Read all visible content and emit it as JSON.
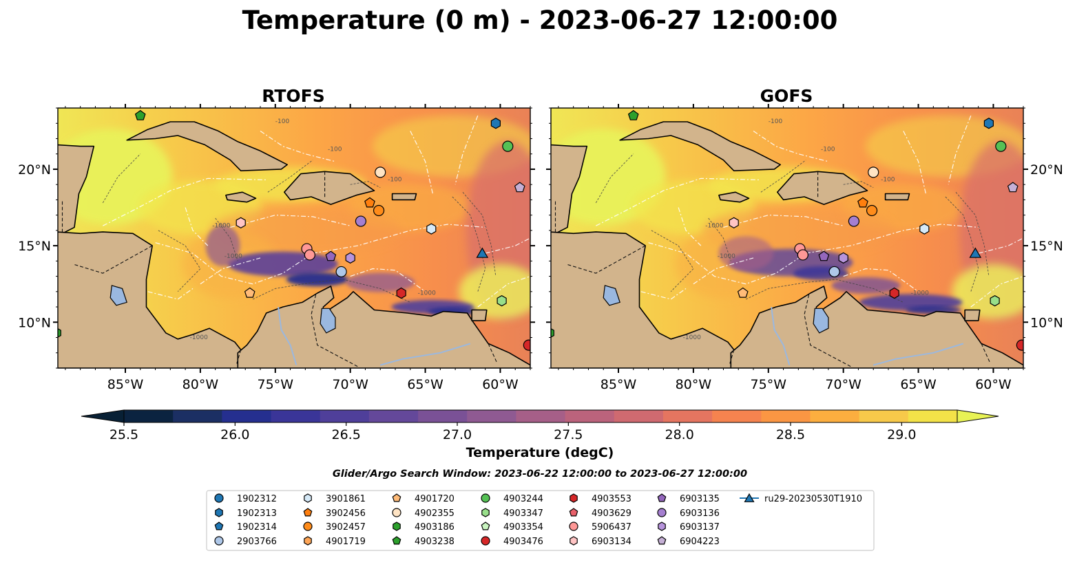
{
  "title": "Temperature (0 m) - 2023-06-27 12:00:00",
  "panels": [
    {
      "title": "RTOFS",
      "variant": 0
    },
    {
      "title": "GOFS",
      "variant": 1
    }
  ],
  "map": {
    "lon_range": [
      -89.5,
      -58.0
    ],
    "lat_range": [
      7.0,
      24.0
    ],
    "x_ticks": [
      {
        "value": -85,
        "label": "85°W"
      },
      {
        "value": -80,
        "label": "80°W"
      },
      {
        "value": -75,
        "label": "75°W"
      },
      {
        "value": -70,
        "label": "70°W"
      },
      {
        "value": -65,
        "label": "65°W"
      },
      {
        "value": -60,
        "label": "60°W"
      }
    ],
    "y_ticks": [
      {
        "value": 10,
        "label": "10°N"
      },
      {
        "value": 15,
        "label": "15°N"
      },
      {
        "value": 20,
        "label": "20°N"
      }
    ],
    "contour_labels": [
      "-100",
      "-1000"
    ],
    "colors": {
      "land": "#d2b48c",
      "lake": "#9ab8e0",
      "contour": "#444444",
      "eez": "#ffffff",
      "coast": "#000000"
    }
  },
  "colorbar": {
    "label": "Temperature (degC)",
    "min": 25.5,
    "max": 29.25,
    "ticks": [
      {
        "value": 25.5,
        "label": "25.5"
      },
      {
        "value": 26.0,
        "label": "26.0"
      },
      {
        "value": 26.5,
        "label": "26.5"
      },
      {
        "value": 27.0,
        "label": "27.0"
      },
      {
        "value": 27.5,
        "label": "27.5"
      },
      {
        "value": 28.0,
        "label": "28.0"
      },
      {
        "value": 28.5,
        "label": "28.5"
      },
      {
        "value": 29.0,
        "label": "29.0"
      }
    ],
    "colors": [
      "#0b2340",
      "#1b2f63",
      "#252f8f",
      "#3a3598",
      "#4f3f9a",
      "#64489a",
      "#7a5196",
      "#8f5a92",
      "#a65f88",
      "#bb637c",
      "#cf6a70",
      "#e57560",
      "#f5834f",
      "#fb9643",
      "#fcae3f",
      "#f7c94a",
      "#f3e248"
    ],
    "extend_low_color": "#082035",
    "extend_high_color": "#e8f355"
  },
  "search_window": "Glider/Argo Search Window: 2023-06-22 12:00:00 to 2023-06-27 12:00:00",
  "legend": [
    {
      "label": "1902312",
      "marker": "circle",
      "color": "#1f77b4"
    },
    {
      "label": "1902313",
      "marker": "hexagon",
      "color": "#1f77b4"
    },
    {
      "label": "1902314",
      "marker": "pentagon",
      "color": "#1f77b4"
    },
    {
      "label": "2903766",
      "marker": "circle",
      "color": "#aec7e8"
    },
    {
      "label": "3901861",
      "marker": "hexagon",
      "color": "#d6eaf8"
    },
    {
      "label": "3902456",
      "marker": "pentagon",
      "color": "#ff7f0e"
    },
    {
      "label": "3902457",
      "marker": "circle",
      "color": "#ff8c1a"
    },
    {
      "label": "4901719",
      "marker": "hexagon",
      "color": "#ffa657"
    },
    {
      "label": "4901720",
      "marker": "pentagon",
      "color": "#ffbb78"
    },
    {
      "label": "4902355",
      "marker": "circle",
      "color": "#ffe4c4"
    },
    {
      "label": "4903186",
      "marker": "hexagon",
      "color": "#2ca02c"
    },
    {
      "label": "4903238",
      "marker": "pentagon",
      "color": "#2ca02c"
    },
    {
      "label": "4903244",
      "marker": "circle",
      "color": "#55c155"
    },
    {
      "label": "4903347",
      "marker": "hexagon",
      "color": "#98df8a"
    },
    {
      "label": "4903354",
      "marker": "pentagon",
      "color": "#c9f5c0"
    },
    {
      "label": "4903476",
      "marker": "circle",
      "color": "#d62728"
    },
    {
      "label": "4903553",
      "marker": "hexagon",
      "color": "#d62728"
    },
    {
      "label": "4903629",
      "marker": "pentagon",
      "color": "#e8606a"
    },
    {
      "label": "5906437",
      "marker": "circle",
      "color": "#ff9896"
    },
    {
      "label": "6903134",
      "marker": "hexagon",
      "color": "#ffc4c4"
    },
    {
      "label": "6903135",
      "marker": "pentagon",
      "color": "#9467bd"
    },
    {
      "label": "6903136",
      "marker": "circle",
      "color": "#a57fd0"
    },
    {
      "label": "6903137",
      "marker": "hexagon",
      "color": "#b794dc"
    },
    {
      "label": "6904223",
      "marker": "pentagon",
      "color": "#c5b0d5"
    },
    {
      "label": "ru29-20230530T1910",
      "marker": "triangle-line",
      "color": "#1f77b4"
    }
  ],
  "platforms": [
    {
      "id": "1902313",
      "lon": -60.3,
      "lat": 23.0,
      "marker": "hexagon",
      "color": "#1f77b4"
    },
    {
      "id": "4903238",
      "lon": -84.0,
      "lat": 23.5,
      "marker": "pentagon",
      "color": "#2ca02c"
    },
    {
      "id": "4903244",
      "lon": -59.5,
      "lat": 21.5,
      "marker": "circle",
      "color": "#55c155"
    },
    {
      "id": "4902355",
      "lon": -68.0,
      "lat": 19.8,
      "marker": "circle",
      "color": "#ffe4c4"
    },
    {
      "id": "6904223",
      "lon": -58.7,
      "lat": 18.8,
      "marker": "pentagon",
      "color": "#c5b0d5"
    },
    {
      "id": "3902456",
      "lon": -68.7,
      "lat": 17.8,
      "marker": "pentagon",
      "color": "#ff7f0e"
    },
    {
      "id": "3902457",
      "lon": -68.1,
      "lat": 17.3,
      "marker": "circle",
      "color": "#ff8c1a"
    },
    {
      "id": "6903134",
      "lon": -77.3,
      "lat": 16.5,
      "marker": "hexagon",
      "color": "#ffc4c4"
    },
    {
      "id": "6903136",
      "lon": -69.3,
      "lat": 16.6,
      "marker": "circle",
      "color": "#a57fd0"
    },
    {
      "id": "3901861",
      "lon": -64.6,
      "lat": 16.1,
      "marker": "hexagon",
      "color": "#d6eaf8"
    },
    {
      "id": "5906437",
      "lon": -72.9,
      "lat": 14.8,
      "marker": "circle",
      "color": "#ff9896"
    },
    {
      "id": "5906437b",
      "lon": -72.7,
      "lat": 14.4,
      "marker": "circle",
      "color": "#ff9896"
    },
    {
      "id": "6903135",
      "lon": -71.3,
      "lat": 14.3,
      "marker": "pentagon",
      "color": "#9467bd"
    },
    {
      "id": "6903137",
      "lon": -70.0,
      "lat": 14.2,
      "marker": "hexagon",
      "color": "#b794dc"
    },
    {
      "id": "2903766",
      "lon": -70.6,
      "lat": 13.3,
      "marker": "circle",
      "color": "#aec7e8"
    },
    {
      "id": "ru29-20230530T1910",
      "lon": -61.2,
      "lat": 14.5,
      "marker": "triangle",
      "color": "#1f77b4"
    },
    {
      "id": "4901720",
      "lon": -76.7,
      "lat": 11.9,
      "marker": "pentagon",
      "color": "#ffbb78"
    },
    {
      "id": "4903553",
      "lon": -66.6,
      "lat": 11.9,
      "marker": "hexagon",
      "color": "#d62728"
    },
    {
      "id": "4903347",
      "lon": -59.9,
      "lat": 11.4,
      "marker": "hexagon",
      "color": "#98df8a"
    },
    {
      "id": "4903476",
      "lon": -58.1,
      "lat": 8.5,
      "marker": "circle",
      "color": "#d62728"
    },
    {
      "id": "4903186",
      "lon": -89.6,
      "lat": 9.3,
      "marker": "hexagon",
      "color": "#2ca02c"
    }
  ]
}
